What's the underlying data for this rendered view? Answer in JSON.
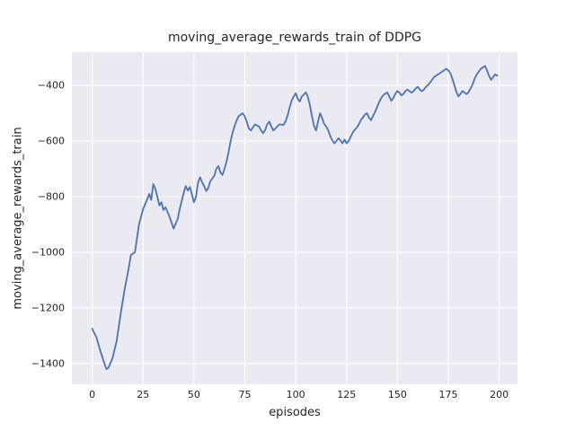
{
  "colors": {
    "line": "#4c72b0",
    "plot_background": "#eaeaf2",
    "grid": "#ffffff",
    "text": "#262626",
    "figure_background": "#ffffff"
  },
  "chart_data": {
    "type": "line",
    "title": "moving_average_rewards_train of DDPG",
    "xlabel": "episodes",
    "ylabel": "moving_average_rewards_train",
    "xlim": [
      -10,
      209
    ],
    "ylim": [
      -1475,
      -280
    ],
    "x_ticks": [
      0,
      25,
      50,
      75,
      100,
      125,
      150,
      175,
      200
    ],
    "y_ticks": [
      -1400,
      -1200,
      -1000,
      -800,
      -600,
      -400
    ],
    "grid": true,
    "legend": false,
    "series_name": "moving_average_rewards_train",
    "points": [
      [
        0,
        -1275
      ],
      [
        2,
        -1305
      ],
      [
        4,
        -1355
      ],
      [
        6,
        -1400
      ],
      [
        7,
        -1420
      ],
      [
        8,
        -1415
      ],
      [
        10,
        -1380
      ],
      [
        12,
        -1320
      ],
      [
        14,
        -1220
      ],
      [
        16,
        -1130
      ],
      [
        18,
        -1055
      ],
      [
        19,
        -1010
      ],
      [
        21,
        -1000
      ],
      [
        23,
        -900
      ],
      [
        25,
        -845
      ],
      [
        27,
        -810
      ],
      [
        28,
        -790
      ],
      [
        29,
        -812
      ],
      [
        30,
        -755
      ],
      [
        31,
        -772
      ],
      [
        32,
        -800
      ],
      [
        33,
        -832
      ],
      [
        34,
        -820
      ],
      [
        35,
        -848
      ],
      [
        36,
        -838
      ],
      [
        38,
        -872
      ],
      [
        40,
        -915
      ],
      [
        42,
        -880
      ],
      [
        43,
        -845
      ],
      [
        44,
        -815
      ],
      [
        45,
        -785
      ],
      [
        46,
        -762
      ],
      [
        47,
        -778
      ],
      [
        48,
        -765
      ],
      [
        49,
        -792
      ],
      [
        50,
        -820
      ],
      [
        51,
        -800
      ],
      [
        52,
        -750
      ],
      [
        53,
        -730
      ],
      [
        54,
        -748
      ],
      [
        55,
        -762
      ],
      [
        56,
        -780
      ],
      [
        57,
        -770
      ],
      [
        58,
        -745
      ],
      [
        60,
        -725
      ],
      [
        61,
        -700
      ],
      [
        62,
        -690
      ],
      [
        63,
        -712
      ],
      [
        64,
        -722
      ],
      [
        65,
        -700
      ],
      [
        66,
        -675
      ],
      [
        67,
        -640
      ],
      [
        68,
        -600
      ],
      [
        69,
        -570
      ],
      [
        70,
        -545
      ],
      [
        71,
        -525
      ],
      [
        72,
        -510
      ],
      [
        74,
        -500
      ],
      [
        75,
        -512
      ],
      [
        76,
        -532
      ],
      [
        77,
        -555
      ],
      [
        78,
        -562
      ],
      [
        79,
        -550
      ],
      [
        80,
        -540
      ],
      [
        82,
        -548
      ],
      [
        83,
        -562
      ],
      [
        84,
        -572
      ],
      [
        85,
        -560
      ],
      [
        86,
        -540
      ],
      [
        87,
        -530
      ],
      [
        88,
        -548
      ],
      [
        89,
        -562
      ],
      [
        90,
        -555
      ],
      [
        92,
        -540
      ],
      [
        94,
        -542
      ],
      [
        95,
        -530
      ],
      [
        96,
        -508
      ],
      [
        97,
        -480
      ],
      [
        98,
        -455
      ],
      [
        99,
        -440
      ],
      [
        100,
        -428
      ],
      [
        101,
        -448
      ],
      [
        102,
        -458
      ],
      [
        103,
        -440
      ],
      [
        105,
        -425
      ],
      [
        106,
        -442
      ],
      [
        107,
        -472
      ],
      [
        108,
        -512
      ],
      [
        109,
        -545
      ],
      [
        110,
        -562
      ],
      [
        111,
        -530
      ],
      [
        112,
        -500
      ],
      [
        113,
        -518
      ],
      [
        114,
        -538
      ],
      [
        115,
        -548
      ],
      [
        116,
        -562
      ],
      [
        117,
        -582
      ],
      [
        118,
        -598
      ],
      [
        119,
        -608
      ],
      [
        120,
        -600
      ],
      [
        121,
        -590
      ],
      [
        122,
        -598
      ],
      [
        123,
        -608
      ],
      [
        124,
        -595
      ],
      [
        125,
        -608
      ],
      [
        126,
        -600
      ],
      [
        127,
        -585
      ],
      [
        128,
        -570
      ],
      [
        129,
        -560
      ],
      [
        130,
        -552
      ],
      [
        131,
        -540
      ],
      [
        132,
        -525
      ],
      [
        133,
        -515
      ],
      [
        134,
        -505
      ],
      [
        135,
        -500
      ],
      [
        136,
        -515
      ],
      [
        137,
        -525
      ],
      [
        138,
        -510
      ],
      [
        139,
        -495
      ],
      [
        140,
        -478
      ],
      [
        141,
        -460
      ],
      [
        142,
        -445
      ],
      [
        143,
        -435
      ],
      [
        144,
        -430
      ],
      [
        145,
        -425
      ],
      [
        146,
        -440
      ],
      [
        147,
        -455
      ],
      [
        148,
        -445
      ],
      [
        149,
        -430
      ],
      [
        150,
        -420
      ],
      [
        151,
        -426
      ],
      [
        152,
        -436
      ],
      [
        153,
        -430
      ],
      [
        154,
        -420
      ],
      [
        155,
        -415
      ],
      [
        156,
        -421
      ],
      [
        157,
        -426
      ],
      [
        158,
        -420
      ],
      [
        159,
        -410
      ],
      [
        160,
        -405
      ],
      [
        161,
        -415
      ],
      [
        162,
        -421
      ],
      [
        163,
        -415
      ],
      [
        164,
        -405
      ],
      [
        165,
        -399
      ],
      [
        166,
        -390
      ],
      [
        167,
        -380
      ],
      [
        168,
        -370
      ],
      [
        169,
        -365
      ],
      [
        170,
        -360
      ],
      [
        171,
        -355
      ],
      [
        172,
        -350
      ],
      [
        173,
        -345
      ],
      [
        174,
        -340
      ],
      [
        175,
        -346
      ],
      [
        176,
        -356
      ],
      [
        177,
        -376
      ],
      [
        178,
        -400
      ],
      [
        179,
        -424
      ],
      [
        180,
        -440
      ],
      [
        181,
        -430
      ],
      [
        182,
        -420
      ],
      [
        183,
        -426
      ],
      [
        184,
        -431
      ],
      [
        185,
        -424
      ],
      [
        186,
        -410
      ],
      [
        187,
        -395
      ],
      [
        188,
        -375
      ],
      [
        189,
        -360
      ],
      [
        190,
        -350
      ],
      [
        191,
        -340
      ],
      [
        192,
        -335
      ],
      [
        193,
        -330
      ],
      [
        194,
        -346
      ],
      [
        195,
        -365
      ],
      [
        196,
        -380
      ],
      [
        197,
        -370
      ],
      [
        198,
        -360
      ],
      [
        199,
        -365
      ]
    ]
  }
}
